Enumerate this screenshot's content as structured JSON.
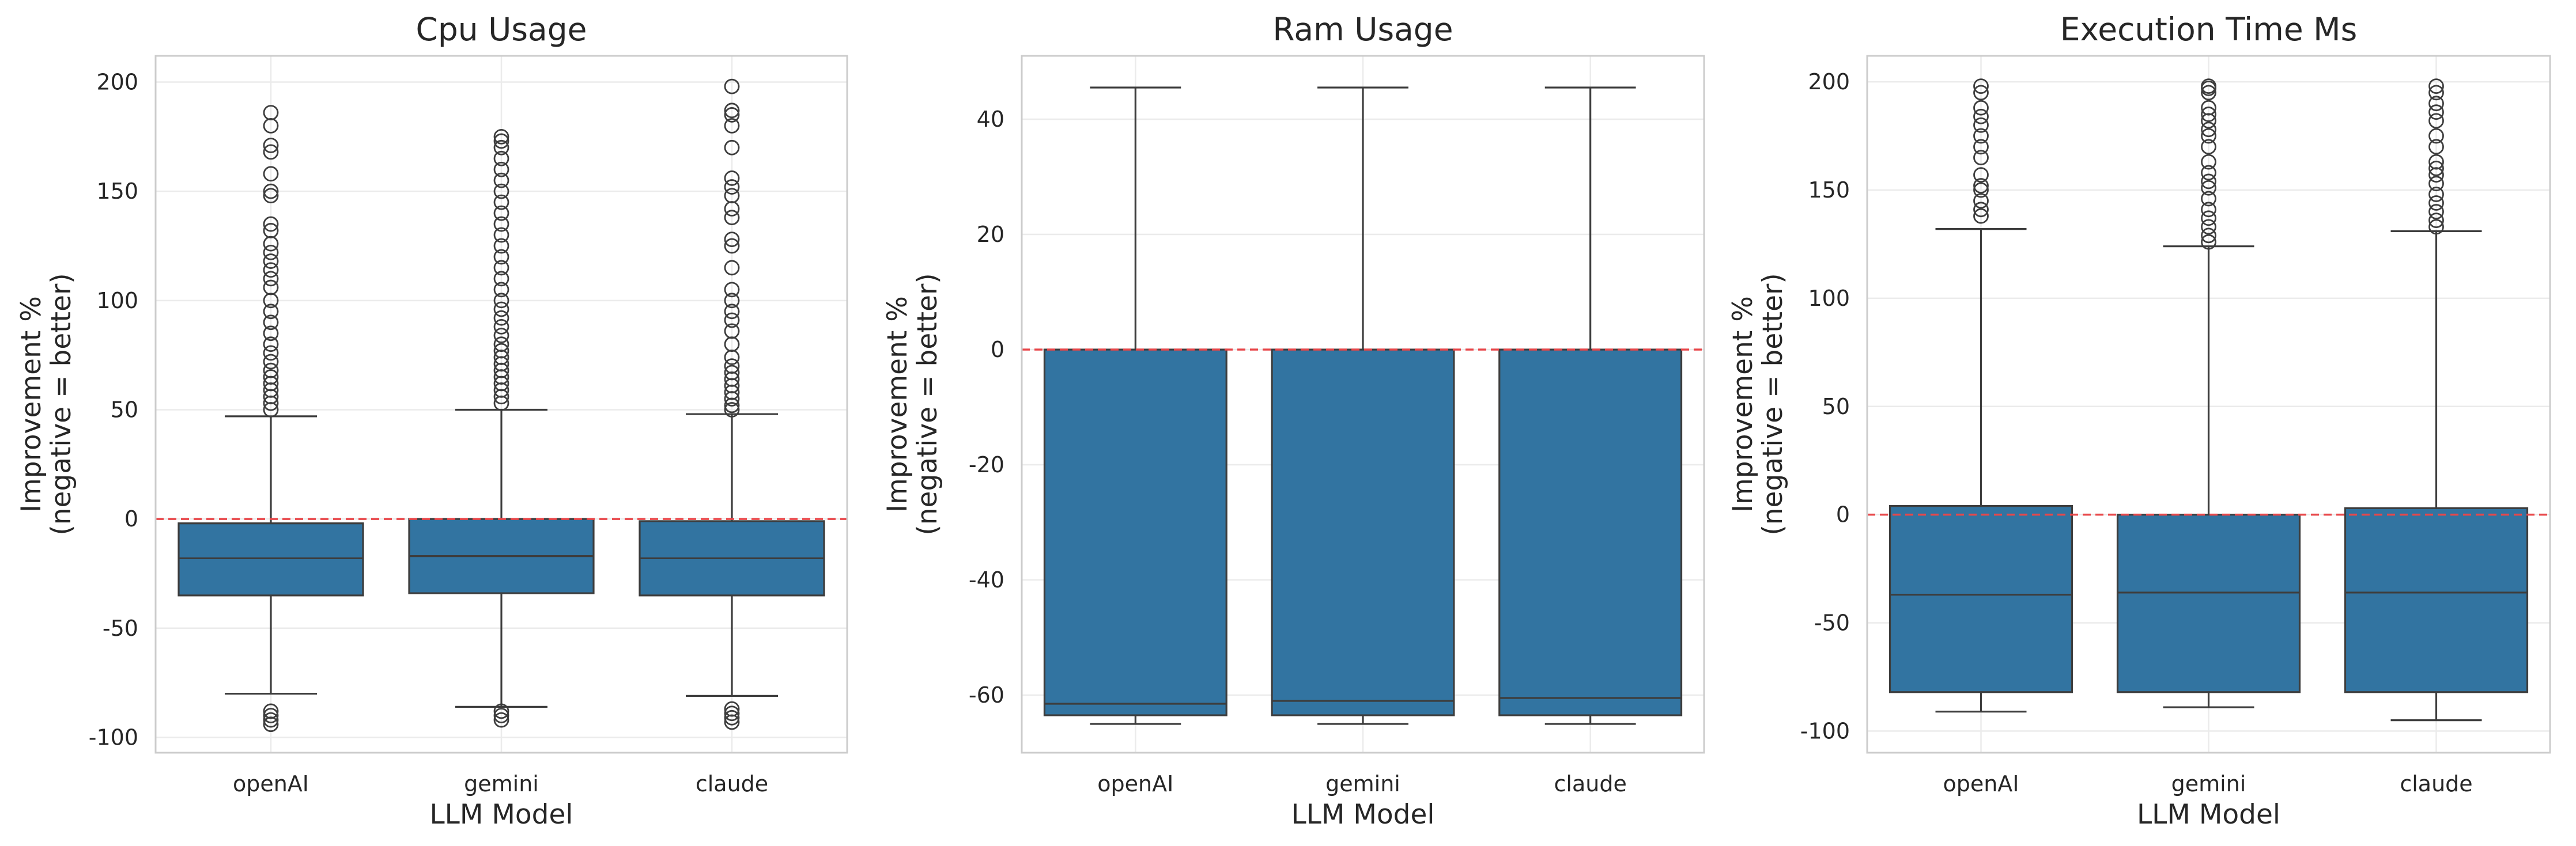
{
  "style": {
    "box_fill": "#3274a1",
    "line_color": "#3d3d3d",
    "zero_line_color": "#e8474a",
    "grid_color": "#ebebeb",
    "frame_color": "#cccccc"
  },
  "chart_data": [
    {
      "type": "box",
      "title": "Cpu Usage",
      "xlabel": "LLM Model",
      "ylabel": [
        "Improvement %",
        "(negative = better)"
      ],
      "ylim": [
        -107,
        212
      ],
      "yticks": [
        -100,
        -50,
        0,
        50,
        100,
        150,
        200
      ],
      "grid": true,
      "reference_line": 0,
      "categories": [
        "openAI",
        "gemini",
        "claude"
      ],
      "boxes": [
        {
          "whislo": -80,
          "q1": -35,
          "med": -18,
          "q3": -2,
          "whishi": 47,
          "fliers": [
            -94,
            -92,
            -90,
            -88,
            50,
            53,
            56,
            59,
            62,
            65,
            68,
            72,
            76,
            80,
            85,
            90,
            95,
            100,
            106,
            110,
            114,
            118,
            122,
            126,
            132,
            135,
            148,
            150,
            158,
            168,
            171,
            180,
            186
          ]
        },
        {
          "whislo": -86,
          "q1": -34,
          "med": -17,
          "q3": 0,
          "whishi": 50,
          "fliers": [
            -92,
            -90,
            -88,
            53,
            56,
            59,
            62,
            65,
            68,
            71,
            74,
            77,
            80,
            84,
            88,
            92,
            96,
            100,
            105,
            110,
            115,
            120,
            125,
            130,
            135,
            140,
            145,
            150,
            155,
            160,
            165,
            170,
            173,
            175
          ]
        },
        {
          "whislo": -81,
          "q1": -35,
          "med": -18,
          "q3": -1,
          "whishi": 48,
          "fliers": [
            -93,
            -91,
            -89,
            -87,
            50,
            52,
            55,
            58,
            61,
            64,
            67,
            70,
            74,
            80,
            86,
            91,
            95,
            100,
            105,
            115,
            125,
            128,
            138,
            142,
            148,
            152,
            156,
            170,
            180,
            185,
            187,
            198
          ]
        }
      ]
    },
    {
      "type": "box",
      "title": "Ram Usage",
      "xlabel": "LLM Model",
      "ylabel": [
        "Improvement %",
        "(negative = better)"
      ],
      "ylim": [
        -70,
        51
      ],
      "yticks": [
        -60,
        -40,
        -20,
        0,
        20,
        40
      ],
      "grid": true,
      "reference_line": 0,
      "categories": [
        "openAI",
        "gemini",
        "claude"
      ],
      "boxes": [
        {
          "whislo": -65,
          "q1": -63.5,
          "med": -61.5,
          "q3": 0,
          "whishi": 45.5,
          "fliers": []
        },
        {
          "whislo": -65,
          "q1": -63.5,
          "med": -61,
          "q3": 0,
          "whishi": 45.5,
          "fliers": []
        },
        {
          "whislo": -65,
          "q1": -63.5,
          "med": -60.5,
          "q3": 0,
          "whishi": 45.5,
          "fliers": []
        }
      ]
    },
    {
      "type": "box",
      "title": "Execution Time Ms",
      "xlabel": "LLM Model",
      "ylabel": [
        "Improvement %",
        "(negative = better)"
      ],
      "ylim": [
        -110,
        212
      ],
      "yticks": [
        -100,
        -50,
        0,
        50,
        100,
        150,
        200
      ],
      "grid": true,
      "reference_line": 0,
      "categories": [
        "openAI",
        "gemini",
        "claude"
      ],
      "boxes": [
        {
          "whislo": -91,
          "q1": -82,
          "med": -37,
          "q3": 4,
          "whishi": 132,
          "fliers": [
            138,
            141,
            145,
            150,
            152,
            157,
            165,
            170,
            175,
            180,
            184,
            188,
            195,
            198
          ]
        },
        {
          "whislo": -89,
          "q1": -82,
          "med": -36,
          "q3": 0,
          "whishi": 124,
          "fliers": [
            126,
            129,
            133,
            137,
            141,
            146,
            151,
            154,
            158,
            163,
            170,
            175,
            178,
            182,
            185,
            188,
            195,
            197,
            198
          ]
        },
        {
          "whislo": -95,
          "q1": -82,
          "med": -36,
          "q3": 3,
          "whishi": 131,
          "fliers": [
            133,
            136,
            140,
            144,
            148,
            153,
            157,
            160,
            163,
            170,
            175,
            182,
            186,
            190,
            195,
            198
          ]
        }
      ]
    }
  ]
}
